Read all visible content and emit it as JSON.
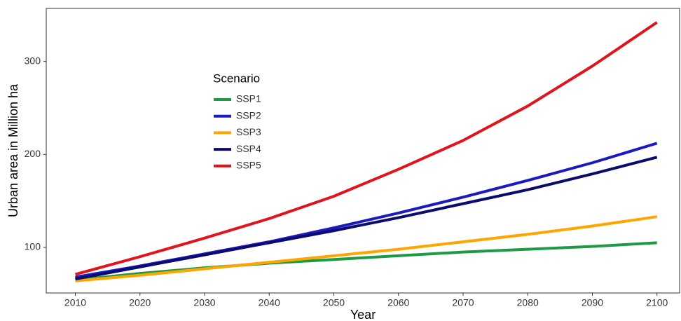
{
  "chart_data": {
    "type": "line",
    "x_label": "Year",
    "y_label": "Urban area in Million ha",
    "legend_title": "Scenario",
    "x": [
      2010,
      2020,
      2030,
      2040,
      2050,
      2060,
      2070,
      2080,
      2090,
      2100
    ],
    "series": [
      {
        "name": "SSP1",
        "color": "#1e9a45",
        "values": [
          65,
          72,
          78,
          83,
          87,
          91,
          95,
          98,
          101,
          105
        ]
      },
      {
        "name": "SSP2",
        "color": "#1a1ac0",
        "values": [
          68,
          80,
          93,
          106,
          121,
          137,
          154,
          172,
          191,
          212
        ]
      },
      {
        "name": "SSP3",
        "color": "#ffa500",
        "values": [
          64,
          70,
          77,
          84,
          91,
          98,
          106,
          114,
          123,
          133
        ]
      },
      {
        "name": "SSP4",
        "color": "#0b0b6e",
        "values": [
          66,
          79,
          92,
          105,
          118,
          132,
          147,
          162,
          179,
          197
        ]
      },
      {
        "name": "SSP5",
        "color": "#e0141c",
        "values": [
          71,
          90,
          110,
          131,
          155,
          184,
          215,
          252,
          295,
          342
        ]
      }
    ],
    "xlim": [
      2005.5,
      2103.5
    ],
    "xticks": [
      2010,
      2020,
      2030,
      2040,
      2050,
      2060,
      2070,
      2080,
      2090,
      2100
    ],
    "ylim": [
      51,
      357
    ],
    "yticks": [
      100,
      200,
      300
    ],
    "grid": false
  }
}
